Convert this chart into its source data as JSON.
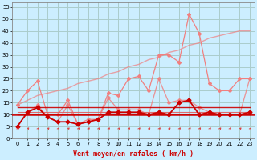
{
  "x": [
    0,
    1,
    2,
    3,
    4,
    5,
    6,
    7,
    8,
    9,
    10,
    11,
    12,
    13,
    14,
    15,
    16,
    17,
    18,
    19,
    20,
    21,
    22,
    23
  ],
  "background_color": "#cceeff",
  "grid_color": "#aacccc",
  "xlabel": "Vent moyen/en rafales ( km/h )",
  "ylim": [
    0,
    57
  ],
  "yticks": [
    0,
    5,
    10,
    15,
    20,
    25,
    30,
    35,
    40,
    45,
    50,
    55
  ],
  "line_rafales": [
    14,
    20,
    24,
    10,
    10,
    16,
    6,
    8,
    8,
    19,
    18,
    25,
    26,
    20,
    35,
    35,
    32,
    52,
    44,
    23,
    20,
    20,
    25,
    25
  ],
  "line_rafales_trend": [
    14,
    16,
    18,
    19,
    20,
    21,
    23,
    24,
    25,
    27,
    28,
    30,
    31,
    33,
    34,
    36,
    37,
    39,
    40,
    42,
    43,
    44,
    45,
    45
  ],
  "line_moyen": [
    5,
    11,
    14,
    9,
    7,
    14,
    6,
    7,
    8,
    17,
    12,
    12,
    12,
    10,
    25,
    15,
    16,
    16,
    13,
    11,
    10,
    10,
    10,
    25
  ],
  "line_avg_dark": [
    5,
    11,
    13,
    9,
    7,
    7,
    6,
    7,
    8,
    11,
    11,
    11,
    11,
    10,
    11,
    10,
    15,
    16,
    10,
    11,
    10,
    10,
    10,
    11
  ],
  "line_trend1": [
    10,
    10,
    10,
    10,
    10,
    10,
    10,
    10,
    10,
    10,
    10,
    10,
    10,
    10,
    10,
    10,
    10,
    10,
    10,
    10,
    10,
    10,
    10,
    10
  ],
  "line_trend2": [
    13,
    13,
    13,
    13,
    13,
    13,
    13,
    13,
    13,
    13,
    13,
    13,
    13,
    13,
    13,
    13,
    13,
    13,
    13,
    13,
    13,
    13,
    13,
    13
  ],
  "line_trend3": [
    11,
    11,
    11,
    11,
    11,
    11,
    11,
    11,
    11,
    11,
    11,
    11,
    11,
    11,
    11,
    11,
    11,
    11,
    11,
    11,
    11,
    11,
    11,
    11
  ],
  "color_light_red": "#f08080",
  "color_salmon": "#e06060",
  "color_dark_red": "#cc0000",
  "color_black_red": "#880000",
  "arrow_color": "#dd4444"
}
